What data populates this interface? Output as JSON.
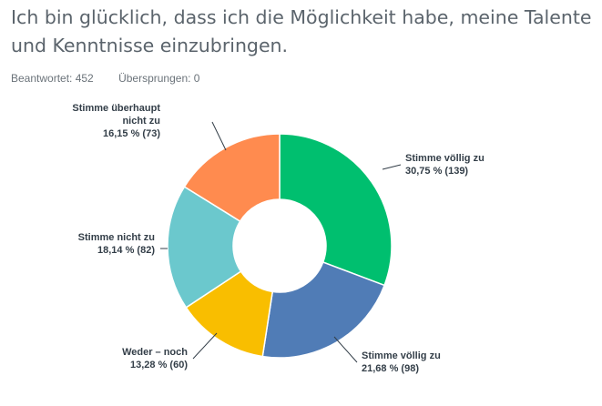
{
  "question": {
    "title": "Ich bin glücklich, dass ich die Möglichkeit habe, meine Talente und Kenntnisse einzubringen."
  },
  "stats": {
    "answered": "Beantwortet: 452",
    "skipped": "Übersprungen: 0"
  },
  "chart_data": {
    "type": "pie",
    "donut": true,
    "legend": "none",
    "slices": [
      {
        "category": "Stimme völlig zu",
        "percent": 30.75,
        "count": 139,
        "value_label": "30,75 % (139)",
        "color": "#00bf6f"
      },
      {
        "category": "Stimme völlig zu",
        "percent": 21.68,
        "count": 98,
        "value_label": "21,68 % (98)",
        "color": "#507cb6"
      },
      {
        "category": "Weder – noch",
        "percent": 13.28,
        "count": 60,
        "value_label": "13,28 % (60)",
        "color": "#f9be00"
      },
      {
        "category": "Stimme nicht zu",
        "percent": 18.14,
        "count": 82,
        "value_label": "18,14 % (82)",
        "color": "#6bc8cd"
      },
      {
        "category": "Stimme überhaupt nicht zu",
        "percent": 16.15,
        "count": 73,
        "value_label": "16,15 % (73)",
        "color": "#ff8b4f"
      }
    ]
  }
}
